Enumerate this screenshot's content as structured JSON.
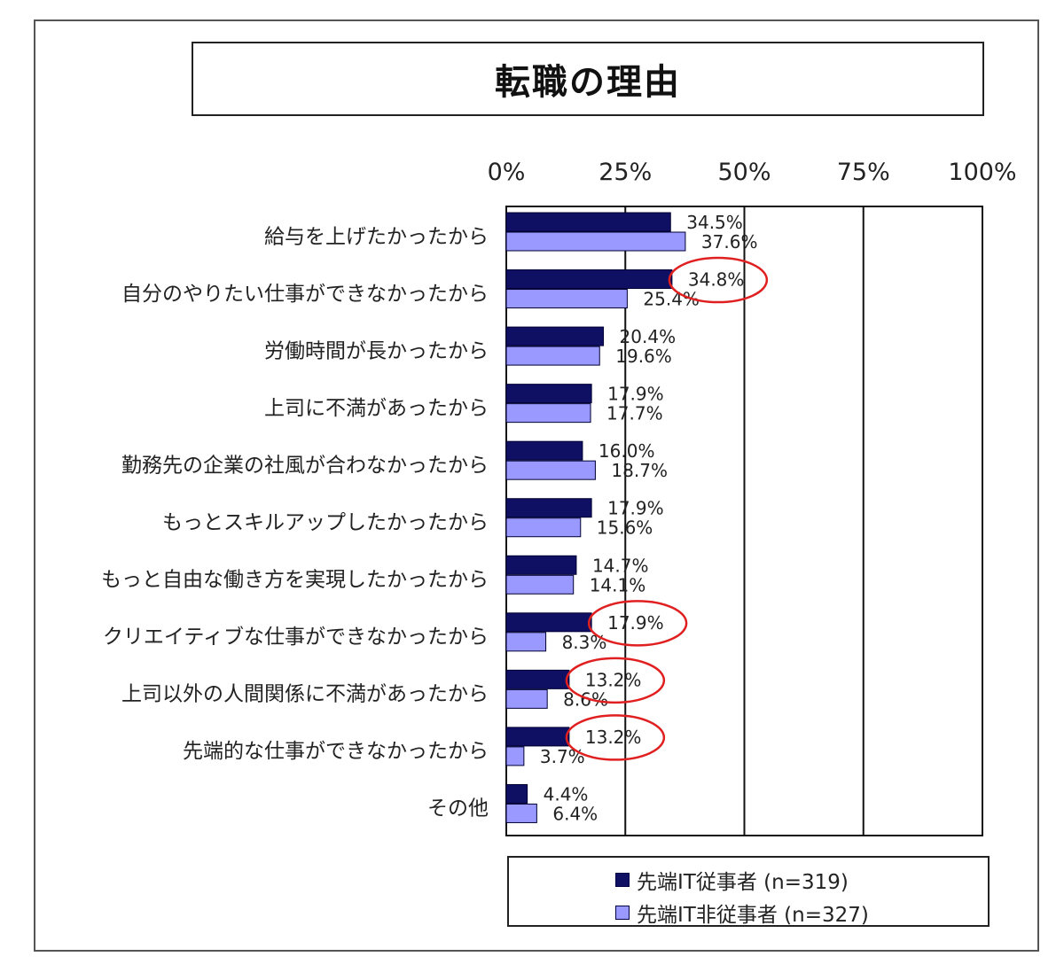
{
  "title": "転職の理由",
  "colors": {
    "series1": "#0f0f63",
    "series2": "#9999ff",
    "highlight": "#e02020"
  },
  "chart_data": {
    "type": "bar",
    "orientation": "horizontal",
    "title": "転職の理由",
    "xlim": [
      0,
      100
    ],
    "x_ticks": [
      "0%",
      "25%",
      "50%",
      "75%",
      "100%"
    ],
    "categories": [
      "給与を上げたかったから",
      "自分のやりたい仕事ができなかったから",
      "労働時間が長かったから",
      "上司に不満があったから",
      "勤務先の企業の社風が合わなかったから",
      "もっとスキルアップしたかったから",
      "もっと自由な働き方を実現したかったから",
      "クリエイティブな仕事ができなかったから",
      "上司以外の人間関係に不満があったから",
      "先端的な仕事ができなかったから",
      "その他"
    ],
    "series": [
      {
        "name": "先端IT従事者 (n=319)",
        "values": [
          34.5,
          34.8,
          20.4,
          17.9,
          16.0,
          17.9,
          14.7,
          17.9,
          13.2,
          13.2,
          4.4
        ],
        "labels": [
          "34.5%",
          "34.8%",
          "20.4%",
          "17.9%",
          "16.0%",
          "17.9%",
          "14.7%",
          "17.9%",
          "13.2%",
          "13.2%",
          "4.4%"
        ]
      },
      {
        "name": "先端IT非従事者 (n=327)",
        "values": [
          37.6,
          25.4,
          19.6,
          17.7,
          18.7,
          15.6,
          14.1,
          8.3,
          8.6,
          3.7,
          6.4
        ],
        "labels": [
          "37.6%",
          "25.4%",
          "19.6%",
          "17.7%",
          "18.7%",
          "15.6%",
          "14.1%",
          "8.3%",
          "8.6%",
          "3.7%",
          "6.4%"
        ]
      }
    ],
    "highlighted": [
      {
        "category_index": 1,
        "series_index": 0
      },
      {
        "category_index": 7,
        "series_index": 0
      },
      {
        "category_index": 8,
        "series_index": 0
      },
      {
        "category_index": 9,
        "series_index": 0
      }
    ],
    "grid": "vertical",
    "legend_position": "bottom"
  },
  "legend": {
    "item1": "先端IT従事者 (n=319)",
    "item2": "先端IT非従事者 (n=327)"
  }
}
